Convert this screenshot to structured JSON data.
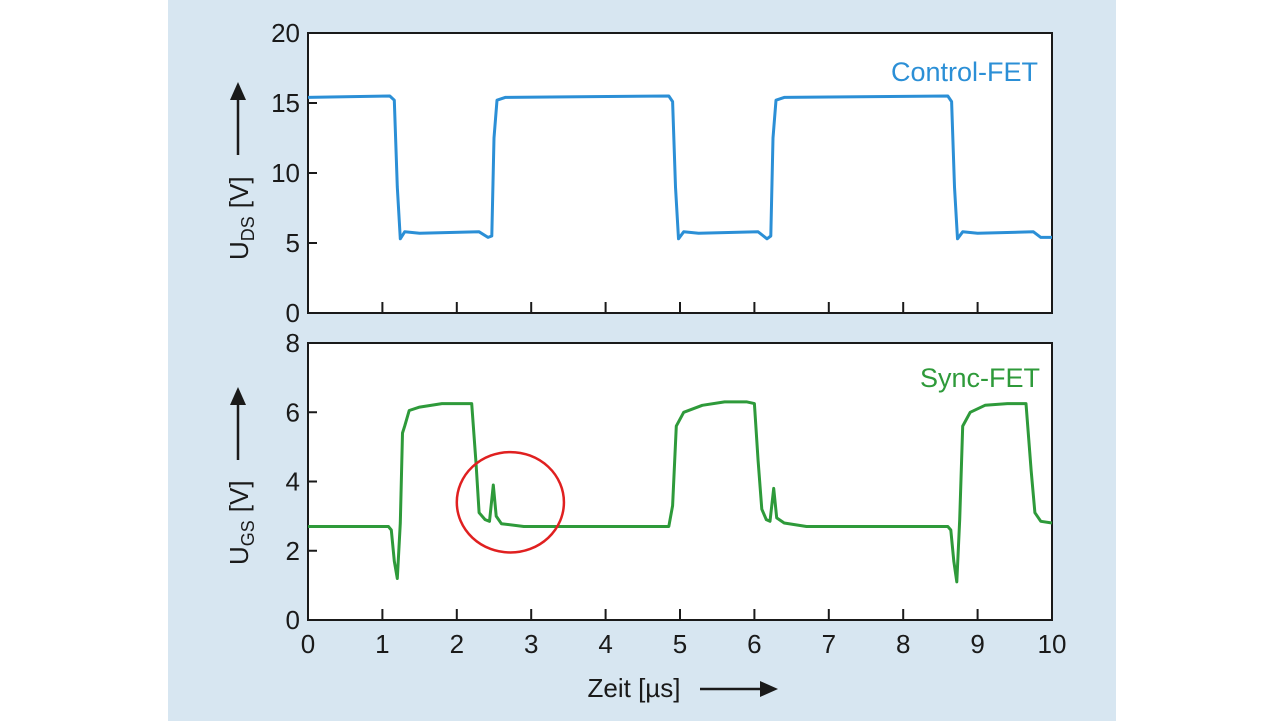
{
  "chart_data": [
    {
      "type": "line",
      "series_label": "Control-FET",
      "ylabel_main": "U",
      "ylabel_sub": "DS",
      "ylabel_unit": "[V]",
      "xlim": [
        0,
        10
      ],
      "ylim": [
        0,
        20
      ],
      "yticks": [
        0,
        5,
        10,
        15,
        20
      ],
      "xticks": [
        0,
        1,
        2,
        3,
        4,
        5,
        6,
        7,
        8,
        9,
        10
      ],
      "color": "#2b8fd6",
      "series": [
        {
          "values": [
            [
              0,
              15.4
            ],
            [
              1.1,
              15.5
            ],
            [
              1.16,
              15.2
            ],
            [
              1.2,
              9.0
            ],
            [
              1.24,
              5.3
            ],
            [
              1.3,
              5.8
            ],
            [
              1.5,
              5.7
            ],
            [
              2.3,
              5.8
            ],
            [
              2.42,
              5.4
            ],
            [
              2.47,
              5.5
            ],
            [
              2.5,
              12.5
            ],
            [
              2.54,
              15.2
            ],
            [
              2.65,
              15.4
            ],
            [
              4.85,
              15.5
            ],
            [
              4.9,
              15.1
            ],
            [
              4.94,
              9.0
            ],
            [
              4.98,
              5.3
            ],
            [
              5.05,
              5.8
            ],
            [
              5.25,
              5.7
            ],
            [
              6.05,
              5.8
            ],
            [
              6.17,
              5.3
            ],
            [
              6.22,
              5.5
            ],
            [
              6.25,
              12.5
            ],
            [
              6.29,
              15.2
            ],
            [
              6.4,
              15.4
            ],
            [
              8.6,
              15.5
            ],
            [
              8.65,
              15.1
            ],
            [
              8.69,
              9.0
            ],
            [
              8.73,
              5.3
            ],
            [
              8.8,
              5.8
            ],
            [
              9.0,
              5.7
            ],
            [
              9.75,
              5.8
            ],
            [
              9.85,
              5.4
            ],
            [
              10,
              5.4
            ]
          ]
        }
      ]
    },
    {
      "type": "line",
      "series_label": "Sync-FET",
      "ylabel_main": "U",
      "ylabel_sub": "GS",
      "ylabel_unit": "[V]",
      "xlabel": "Zeit [µs]",
      "xlim": [
        0,
        10
      ],
      "ylim": [
        0,
        8
      ],
      "yticks": [
        0,
        2,
        4,
        6,
        8
      ],
      "xticks": [
        0,
        1,
        2,
        3,
        4,
        5,
        6,
        7,
        8,
        9,
        10
      ],
      "xticklabels": [
        "0",
        "1",
        "2",
        "3",
        "4",
        "5",
        "6",
        "7",
        "8",
        "9",
        "10"
      ],
      "color": "#2e9a3a",
      "highlight": {
        "shape": "circle",
        "color": "#e02020",
        "x": 2.72,
        "y": 3.4,
        "rx": 0.72,
        "ry": 1.45
      },
      "series": [
        {
          "values": [
            [
              0,
              2.7
            ],
            [
              1.08,
              2.7
            ],
            [
              1.12,
              2.6
            ],
            [
              1.16,
              1.7
            ],
            [
              1.2,
              1.2
            ],
            [
              1.24,
              2.8
            ],
            [
              1.27,
              5.4
            ],
            [
              1.3,
              5.6
            ],
            [
              1.36,
              6.05
            ],
            [
              1.5,
              6.15
            ],
            [
              1.8,
              6.25
            ],
            [
              2.2,
              6.25
            ],
            [
              2.26,
              4.5
            ],
            [
              2.3,
              3.1
            ],
            [
              2.38,
              2.9
            ],
            [
              2.44,
              2.85
            ],
            [
              2.49,
              3.9
            ],
            [
              2.53,
              3.0
            ],
            [
              2.6,
              2.78
            ],
            [
              2.9,
              2.7
            ],
            [
              4.85,
              2.7
            ],
            [
              4.9,
              3.3
            ],
            [
              4.95,
              5.6
            ],
            [
              5.05,
              6.0
            ],
            [
              5.3,
              6.2
            ],
            [
              5.6,
              6.3
            ],
            [
              5.9,
              6.3
            ],
            [
              6.0,
              6.25
            ],
            [
              6.05,
              4.6
            ],
            [
              6.1,
              3.2
            ],
            [
              6.16,
              2.9
            ],
            [
              6.21,
              2.85
            ],
            [
              6.26,
              3.8
            ],
            [
              6.3,
              2.95
            ],
            [
              6.4,
              2.8
            ],
            [
              6.7,
              2.7
            ],
            [
              8.6,
              2.7
            ],
            [
              8.64,
              2.6
            ],
            [
              8.68,
              1.7
            ],
            [
              8.72,
              1.1
            ],
            [
              8.76,
              2.9
            ],
            [
              8.8,
              5.6
            ],
            [
              8.9,
              6.0
            ],
            [
              9.1,
              6.2
            ],
            [
              9.4,
              6.25
            ],
            [
              9.65,
              6.25
            ],
            [
              9.72,
              4.3
            ],
            [
              9.77,
              3.1
            ],
            [
              9.85,
              2.85
            ],
            [
              10,
              2.8
            ]
          ]
        }
      ]
    }
  ]
}
